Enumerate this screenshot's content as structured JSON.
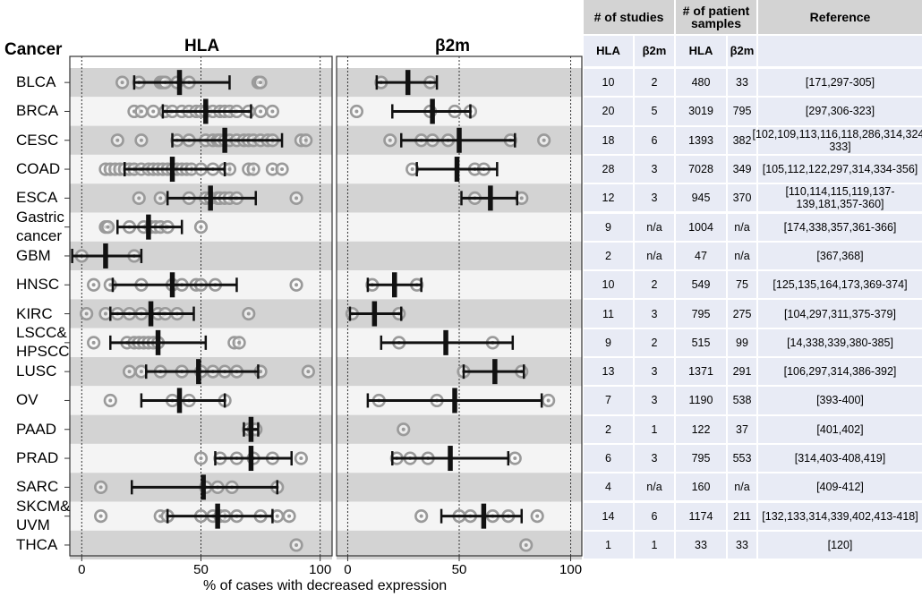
{
  "chart_data": {
    "type": "dot-errorbar",
    "row_header": "Cancer",
    "xlabel": "% of cases with decreased expression",
    "xlim": [
      -5,
      105
    ],
    "xticks": [
      0,
      50,
      100
    ],
    "categories": [
      "BLCA",
      "BRCA",
      "CESC",
      "COAD",
      "ESCA",
      "Gastric cancer",
      "GBM",
      "HNSC",
      "KIRC",
      "LSCC& HPSCC",
      "LUSC",
      "OV",
      "PAAD",
      "PRAD",
      "SARC",
      "SKCM& UVM",
      "THCA"
    ],
    "category_lines": [
      [
        "BLCA"
      ],
      [
        "BRCA"
      ],
      [
        "CESC"
      ],
      [
        "COAD"
      ],
      [
        "ESCA"
      ],
      [
        "Gastric",
        "cancer"
      ],
      [
        "GBM"
      ],
      [
        "HNSC"
      ],
      [
        "KIRC"
      ],
      [
        "LSCC&",
        "HPSCC"
      ],
      [
        "LUSC"
      ],
      [
        "OV"
      ],
      [
        "PAAD"
      ],
      [
        "PRAD"
      ],
      [
        "SARC"
      ],
      [
        "SKCM&",
        "UVM"
      ],
      [
        "THCA"
      ]
    ],
    "panels": [
      {
        "title": "HLA",
        "rows": [
          {
            "mean": 41,
            "low": 22,
            "high": 62,
            "points": [
              17,
              24,
              33,
              34,
              35,
              40,
              45,
              74,
              75
            ]
          },
          {
            "mean": 52,
            "low": 34,
            "high": 71,
            "points": [
              22,
              25,
              30,
              35,
              38,
              42,
              45,
              48,
              50,
              52,
              55,
              58,
              60,
              62,
              65,
              70,
              75,
              80
            ]
          },
          {
            "mean": 60,
            "low": 38,
            "high": 84,
            "points": [
              15,
              25,
              40,
              45,
              52,
              55,
              57,
              58,
              60,
              62,
              65,
              68,
              70,
              72,
              75,
              78,
              80,
              92,
              94
            ]
          },
          {
            "mean": 38,
            "low": 18,
            "high": 60,
            "points": [
              10,
              12,
              14,
              16,
              18,
              20,
              22,
              25,
              28,
              30,
              32,
              34,
              36,
              38,
              40,
              42,
              44,
              46,
              50,
              55,
              60,
              62,
              70,
              72,
              80,
              84
            ]
          },
          {
            "mean": 54,
            "low": 36,
            "high": 73,
            "points": [
              24,
              33,
              45,
              52,
              54,
              57,
              58,
              60,
              62,
              65,
              90
            ]
          },
          {
            "mean": 28,
            "low": 15,
            "high": 42,
            "points": [
              10,
              11,
              20,
              26,
              29,
              31,
              33,
              36,
              50
            ]
          },
          {
            "mean": 10,
            "low": -4,
            "high": 25,
            "points": [
              0,
              22
            ]
          },
          {
            "mean": 38,
            "low": 13,
            "high": 65,
            "points": [
              5,
              12,
              25,
              38,
              42,
              48,
              50,
              56,
              90
            ]
          },
          {
            "mean": 29,
            "low": 12,
            "high": 47,
            "points": [
              2,
              10,
              15,
              20,
              25,
              32,
              35,
              40,
              70
            ]
          },
          {
            "mean": 32,
            "low": 12,
            "high": 52,
            "points": [
              5,
              19,
              22,
              24,
              26,
              28,
              30,
              32,
              64,
              66
            ]
          },
          {
            "mean": 49,
            "low": 27,
            "high": 74,
            "points": [
              20,
              25,
              33,
              42,
              50,
              55,
              60,
              65,
              75,
              95
            ]
          },
          {
            "mean": 41,
            "low": 25,
            "high": 60,
            "points": [
              12,
              38,
              45,
              60
            ]
          },
          {
            "mean": 71,
            "low": 68,
            "high": 74,
            "points": [
              70,
              72,
              73
            ]
          },
          {
            "mean": 71,
            "low": 56,
            "high": 88,
            "points": [
              50,
              58,
              65,
              72,
              80,
              92
            ]
          },
          {
            "mean": 51,
            "low": 21,
            "high": 82,
            "points": [
              8,
              52,
              57,
              63,
              82
            ]
          },
          {
            "mean": 57,
            "low": 36,
            "high": 80,
            "points": [
              8,
              33,
              36,
              50,
              55,
              58,
              60,
              65,
              75,
              82,
              87
            ]
          },
          {
            "mean": null,
            "low": null,
            "high": null,
            "points": [
              90
            ]
          }
        ]
      },
      {
        "title": "β2m",
        "rows": [
          {
            "mean": 27,
            "low": 13,
            "high": 40,
            "points": [
              15,
              37
            ]
          },
          {
            "mean": 38,
            "low": 20,
            "high": 55,
            "points": [
              4,
              37,
              48,
              55
            ]
          },
          {
            "mean": 50,
            "low": 24,
            "high": 75,
            "points": [
              19,
              33,
              38,
              45,
              73,
              88
            ]
          },
          {
            "mean": 49,
            "low": 31,
            "high": 67,
            "points": [
              29,
              57,
              61
            ]
          },
          {
            "mean": 64,
            "low": 51,
            "high": 76,
            "points": [
              57,
              78
            ]
          },
          {
            "mean": null,
            "low": null,
            "high": null,
            "points": []
          },
          {
            "mean": null,
            "low": null,
            "high": null,
            "points": []
          },
          {
            "mean": 21,
            "low": 9,
            "high": 33,
            "points": [
              11,
              31
            ]
          },
          {
            "mean": 12,
            "low": 1,
            "high": 24,
            "points": [
              2,
              23
            ]
          },
          {
            "mean": 44,
            "low": 15,
            "high": 74,
            "points": [
              23,
              65
            ]
          },
          {
            "mean": 66,
            "low": 52,
            "high": 79,
            "points": [
              52,
              78
            ]
          },
          {
            "mean": 48,
            "low": 9,
            "high": 87,
            "points": [
              14,
              40,
              90
            ]
          },
          {
            "mean": null,
            "low": null,
            "high": null,
            "points": [
              25
            ]
          },
          {
            "mean": 46,
            "low": 20,
            "high": 72,
            "points": [
              22,
              28,
              36,
              75
            ]
          },
          {
            "mean": null,
            "low": null,
            "high": null,
            "points": []
          },
          {
            "mean": 61,
            "low": 42,
            "high": 78,
            "points": [
              33,
              50,
              55,
              65,
              72,
              85
            ]
          },
          {
            "mean": null,
            "low": null,
            "high": null,
            "points": [
              80
            ]
          }
        ]
      }
    ]
  },
  "table": {
    "headers": {
      "studies": "# of studies",
      "samples": "# of patient samples",
      "reference": "Reference"
    },
    "subheaders": [
      "HLA",
      "β2m",
      "HLA",
      "β2m"
    ],
    "rows": [
      {
        "studies_hla": "10",
        "studies_b2m": "2",
        "samples_hla": "480",
        "samples_b2m": "33",
        "ref": "[171,297-305]"
      },
      {
        "studies_hla": "20",
        "studies_b2m": "5",
        "samples_hla": "3019",
        "samples_b2m": "795",
        "ref": "[297,306-323]"
      },
      {
        "studies_hla": "18",
        "studies_b2m": "6",
        "samples_hla": "1393",
        "samples_b2m": "382",
        "ref": "[102,109,113,116,118,286,314,324-333]"
      },
      {
        "studies_hla": "28",
        "studies_b2m": "3",
        "samples_hla": "7028",
        "samples_b2m": "349",
        "ref": "[105,112,122,297,314,334-356]"
      },
      {
        "studies_hla": "12",
        "studies_b2m": "3",
        "samples_hla": "945",
        "samples_b2m": "370",
        "ref": "[110,114,115,119,137-139,181,357-360]"
      },
      {
        "studies_hla": "9",
        "studies_b2m": "n/a",
        "samples_hla": "1004",
        "samples_b2m": "n/a",
        "ref": "[174,338,357,361-366]"
      },
      {
        "studies_hla": "2",
        "studies_b2m": "n/a",
        "samples_hla": "47",
        "samples_b2m": "n/a",
        "ref": "[367,368]"
      },
      {
        "studies_hla": "10",
        "studies_b2m": "2",
        "samples_hla": "549",
        "samples_b2m": "75",
        "ref": "[125,135,164,173,369-374]"
      },
      {
        "studies_hla": "11",
        "studies_b2m": "3",
        "samples_hla": "795",
        "samples_b2m": "275",
        "ref": "[104,297,311,375-379]"
      },
      {
        "studies_hla": "9",
        "studies_b2m": "2",
        "samples_hla": "515",
        "samples_b2m": "99",
        "ref": "[14,338,339,380-385]"
      },
      {
        "studies_hla": "13",
        "studies_b2m": "3",
        "samples_hla": "1371",
        "samples_b2m": "291",
        "ref": "[106,297,314,386-392]"
      },
      {
        "studies_hla": "7",
        "studies_b2m": "3",
        "samples_hla": "1190",
        "samples_b2m": "538",
        "ref": "[393-400]"
      },
      {
        "studies_hla": "2",
        "studies_b2m": "1",
        "samples_hla": "122",
        "samples_b2m": "37",
        "ref": "[401,402]"
      },
      {
        "studies_hla": "6",
        "studies_b2m": "3",
        "samples_hla": "795",
        "samples_b2m": "553",
        "ref": "[314,403-408,419]"
      },
      {
        "studies_hla": "4",
        "studies_b2m": "n/a",
        "samples_hla": "160",
        "samples_b2m": "n/a",
        "ref": "[409-412]"
      },
      {
        "studies_hla": "14",
        "studies_b2m": "6",
        "samples_hla": "1174",
        "samples_b2m": "211",
        "ref": "[132,133,314,339,402,413-418]"
      },
      {
        "studies_hla": "1",
        "studies_b2m": "1",
        "samples_hla": "33",
        "samples_b2m": "33",
        "ref": "[120]"
      }
    ]
  },
  "colors": {
    "band_dark": "#d3d3d3",
    "band_light": "#f4f4f4",
    "point": "#9a9a9a",
    "bar": "#111111",
    "table_header": "#d3d3d3",
    "table_cell": "#e8ebf5"
  }
}
